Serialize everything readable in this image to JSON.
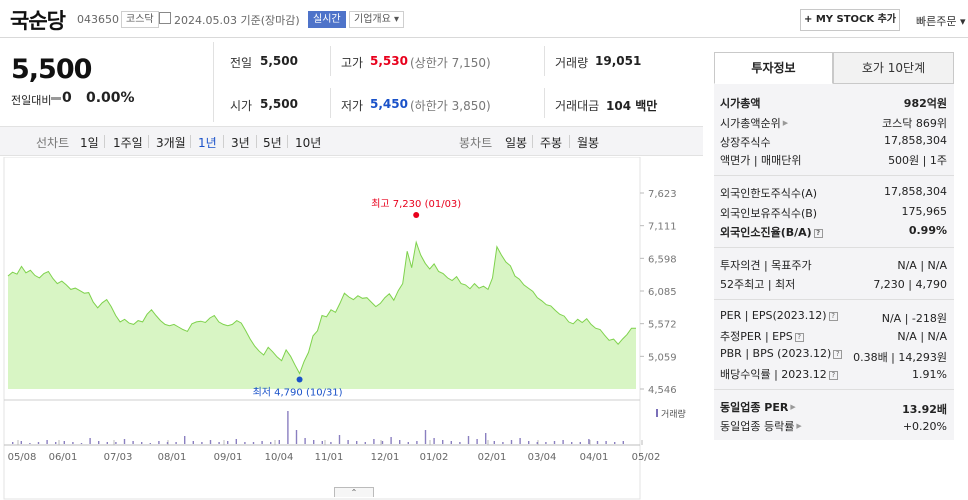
{
  "header": {
    "stock_name": "국순당",
    "stock_code": "043650",
    "market_tag": "코스닥",
    "date_basis": "2024.05.03 기준(장마감)",
    "live_tag": "실시간",
    "company_tag": "기업개요 ▾",
    "mystock_button": "+ MY STOCK 추가",
    "quick_order": "빠른주문 ▾"
  },
  "price": {
    "current": "5,500",
    "change_label": "전일대비",
    "change_value": "0",
    "change_pct": "0.00%"
  },
  "stats": {
    "prev_label": "전일",
    "prev_value": "5,500",
    "high_label": "고가",
    "high_value": "5,530",
    "upper_limit": "(상한가 7,150)",
    "volume_label": "거래량",
    "volume_value": "19,051",
    "open_label": "시가",
    "open_value": "5,500",
    "low_label": "저가",
    "low_value": "5,450",
    "lower_limit": "(하한가 3,850)",
    "amount_label": "거래대금",
    "amount_value": "104 백만"
  },
  "periods": {
    "line_chart_label": "선차트",
    "items": [
      "1일",
      "1주일",
      "3개월",
      "1년",
      "3년",
      "5년",
      "10년"
    ],
    "selected": "1년",
    "candle_label": "봉차트",
    "candle_items": [
      "일봉",
      "주봉",
      "월봉"
    ]
  },
  "tabs": {
    "info": "투자정보",
    "order_book": "호가 10단계"
  },
  "info": {
    "market_cap_label": "시가총액",
    "market_cap_value": "982억원",
    "rank_label": "시가총액순위",
    "rank_value": "코스닥 869위",
    "shares_label": "상장주식수",
    "shares_value": "17,858,304",
    "par_label": "액면가 | 매매단위",
    "par_value": "500원 | 1주",
    "foreign_limit_label": "외국인한도주식수(A)",
    "foreign_limit_value": "17,858,304",
    "foreign_hold_label": "외국인보유주식수(B)",
    "foreign_hold_value": "175,965",
    "foreign_ratio_label": "외국인소진율(B/A)",
    "foreign_ratio_value": "0.99%",
    "opinion_label": "투자의견 | 목표주가",
    "opinion_value": "N/A | N/A",
    "week52_label": "52주최고 | 최저",
    "week52_value": "7,230 | 4,790",
    "per_label": "PER | EPS(2023.12)",
    "per_value": "N/A | -218원",
    "est_per_label": "추정PER | EPS",
    "est_per_value": "N/A | N/A",
    "pbr_label": "PBR | BPS (2023.12)",
    "pbr_value": "0.38배 | 14,293원",
    "dividend_label": "배당수익률 | 2023.12",
    "dividend_value": "1.91%",
    "sector_per_label": "동일업종 PER",
    "sector_per_value": "13.92배",
    "sector_rate_label": "동일업종 등락률",
    "sector_rate_value": "+0.20%"
  },
  "colors": {
    "up": "#e8001c",
    "down": "#1a52c9",
    "line": "#7fd24d",
    "fill": "#d8f5c4"
  },
  "chart_data": {
    "type": "area",
    "title": "",
    "x_tick_labels": [
      "05/08",
      "06/01",
      "07/03",
      "08/01",
      "09/01",
      "10/04",
      "11/01",
      "12/01",
      "01/02",
      "02/01",
      "03/04",
      "04/01",
      "05/02"
    ],
    "y_tick_labels": [
      "7,623",
      "7,111",
      "6,598",
      "6,085",
      "5,572",
      "5,059",
      "4,546"
    ],
    "ylim": [
      4546,
      7623
    ],
    "series": [
      {
        "values": [
          6320,
          6380,
          6350,
          6470,
          6370,
          6410,
          6330,
          6290,
          6360,
          6390,
          6280,
          6200,
          6240,
          6180,
          6110,
          6130,
          6090,
          6050,
          6060,
          5910,
          5820,
          5900,
          5950,
          5840,
          5700,
          5600,
          5640,
          5580,
          5560,
          5620,
          5600,
          5720,
          5790,
          5700,
          5620,
          5560,
          5540,
          5560,
          5520,
          5480,
          5450,
          5570,
          5600,
          5610,
          5590,
          5660,
          5700,
          5600,
          5560,
          5540,
          5560,
          5620,
          5580,
          5460,
          5330,
          5220,
          5140,
          5080,
          5200,
          5130,
          5050,
          4990,
          5160,
          5060,
          4920,
          4790,
          4980,
          5120,
          5380,
          5460,
          5700,
          5680,
          5790,
          5750,
          5890,
          6050,
          5990,
          5950,
          6010,
          5970,
          5980,
          5910,
          5840,
          5890,
          5980,
          6040,
          5940,
          6090,
          6200,
          6710,
          6450,
          6850,
          6650,
          6520,
          6430,
          6510,
          6390,
          6360,
          6290,
          6250,
          6310,
          6200,
          6180,
          6120,
          6200,
          6130,
          6160,
          6110,
          6290,
          6780,
          6650,
          6540,
          6480,
          6320,
          6270,
          6180,
          6130,
          6080,
          5980,
          5930,
          5870,
          5850,
          5780,
          5720,
          5690,
          5600,
          5570,
          5640,
          5590,
          5650,
          5560,
          5500,
          5480,
          5390,
          5310,
          5330,
          5250,
          5330,
          5400,
          5500,
          5500
        ]
      }
    ],
    "high_annotation": "최고 7,230 (01/03)",
    "low_annotation": "최저 4,790 (10/31)",
    "volume_label": "거래량"
  }
}
